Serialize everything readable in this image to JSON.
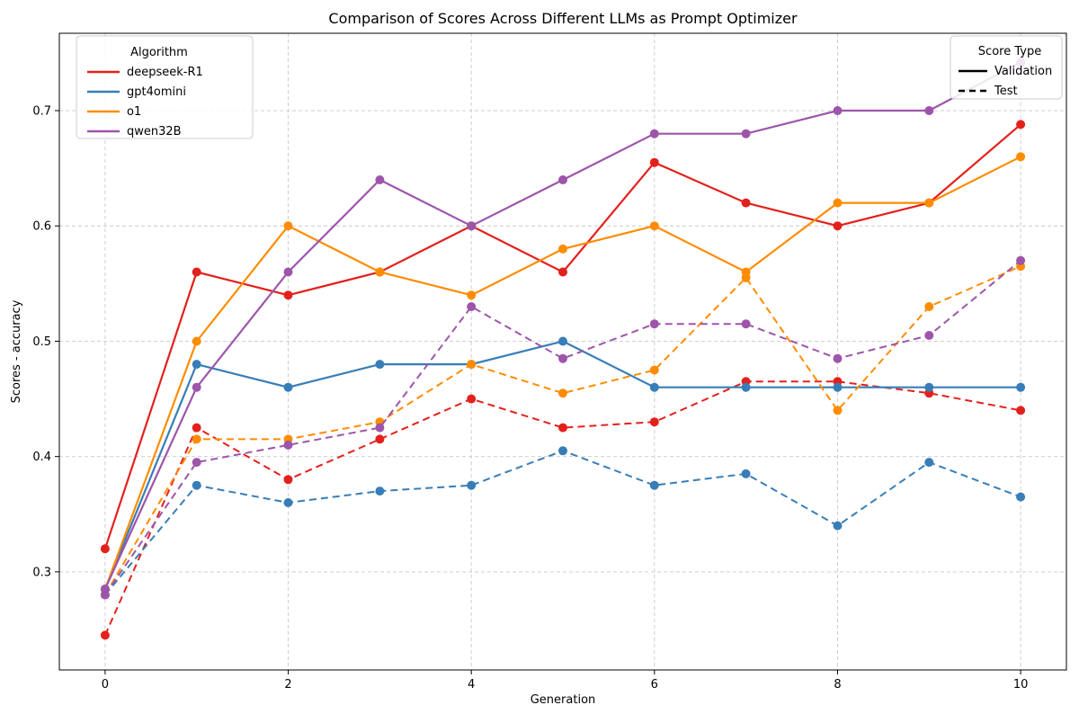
{
  "chart_data": {
    "type": "line",
    "title": "Comparison of Scores Across Different LLMs as Prompt Optimizer",
    "xlabel": "Generation",
    "ylabel": "Scores - accuracy",
    "x": [
      0,
      1,
      2,
      3,
      4,
      5,
      6,
      7,
      8,
      9,
      10
    ],
    "xlim": [
      -0.5,
      10.5
    ],
    "ylim": [
      0.2149,
      0.7671
    ],
    "xticks": {
      "values": [
        0,
        2,
        4,
        6,
        8,
        10
      ],
      "labels": [
        "0",
        "2",
        "4",
        "6",
        "8",
        "10"
      ]
    },
    "yticks": {
      "values": [
        0.3,
        0.4,
        0.5,
        0.6,
        0.7
      ],
      "labels": [
        "0.3",
        "0.4",
        "0.5",
        "0.6",
        "0.7"
      ]
    },
    "grid": true,
    "colors": {
      "deepseek-R1": "#e3211c",
      "gpt4omini": "#377eb8",
      "o1": "#ff8c00",
      "qwen32B": "#9d55aa"
    },
    "series": [
      {
        "name": "deepseek-R1",
        "score_type": "Validation",
        "style": "solid",
        "color": "#e3211c",
        "values": [
          0.32,
          0.56,
          0.54,
          0.56,
          0.6,
          0.56,
          0.655,
          0.62,
          0.6,
          0.62,
          0.688
        ]
      },
      {
        "name": "deepseek-R1",
        "score_type": "Test",
        "style": "dashed",
        "color": "#e3211c",
        "values": [
          0.245,
          0.425,
          0.38,
          0.415,
          0.45,
          0.425,
          0.43,
          0.465,
          0.465,
          0.455,
          0.44
        ]
      },
      {
        "name": "gpt4omini",
        "score_type": "Validation",
        "style": "solid",
        "color": "#377eb8",
        "values": [
          0.285,
          0.48,
          0.46,
          0.48,
          0.48,
          0.5,
          0.46,
          0.46,
          0.46,
          0.46,
          0.46
        ]
      },
      {
        "name": "gpt4omini",
        "score_type": "Test",
        "style": "dashed",
        "color": "#377eb8",
        "values": [
          0.28,
          0.375,
          0.36,
          0.37,
          0.375,
          0.405,
          0.375,
          0.385,
          0.34,
          0.395,
          0.365
        ]
      },
      {
        "name": "o1",
        "score_type": "Validation",
        "style": "solid",
        "color": "#ff8c00",
        "values": [
          0.285,
          0.5,
          0.6,
          0.56,
          0.54,
          0.58,
          0.6,
          0.56,
          0.62,
          0.62,
          0.66
        ]
      },
      {
        "name": "o1",
        "score_type": "Test",
        "style": "dashed",
        "color": "#ff8c00",
        "values": [
          0.28,
          0.415,
          0.415,
          0.43,
          0.48,
          0.455,
          0.475,
          0.555,
          0.44,
          0.53,
          0.565
        ]
      },
      {
        "name": "qwen32B",
        "score_type": "Validation",
        "style": "solid",
        "color": "#9d55aa",
        "values": [
          0.285,
          0.46,
          0.56,
          0.64,
          0.6,
          0.64,
          0.68,
          0.68,
          0.7,
          0.7,
          0.742
        ]
      },
      {
        "name": "qwen32B",
        "score_type": "Test",
        "style": "dashed",
        "color": "#9d55aa",
        "values": [
          0.28,
          0.395,
          0.41,
          0.425,
          0.53,
          0.485,
          0.515,
          0.515,
          0.485,
          0.505,
          0.57
        ]
      }
    ],
    "legends": {
      "algorithm": {
        "title": "Algorithm",
        "entries": [
          {
            "label": "deepseek-R1",
            "color": "#e3211c"
          },
          {
            "label": "gpt4omini",
            "color": "#377eb8"
          },
          {
            "label": "o1",
            "color": "#ff8c00"
          },
          {
            "label": "qwen32B",
            "color": "#9d55aa"
          }
        ]
      },
      "score_type": {
        "title": "Score Type",
        "entries": [
          {
            "label": "Validation",
            "style": "solid"
          },
          {
            "label": "Test",
            "style": "dashed"
          }
        ]
      }
    }
  }
}
